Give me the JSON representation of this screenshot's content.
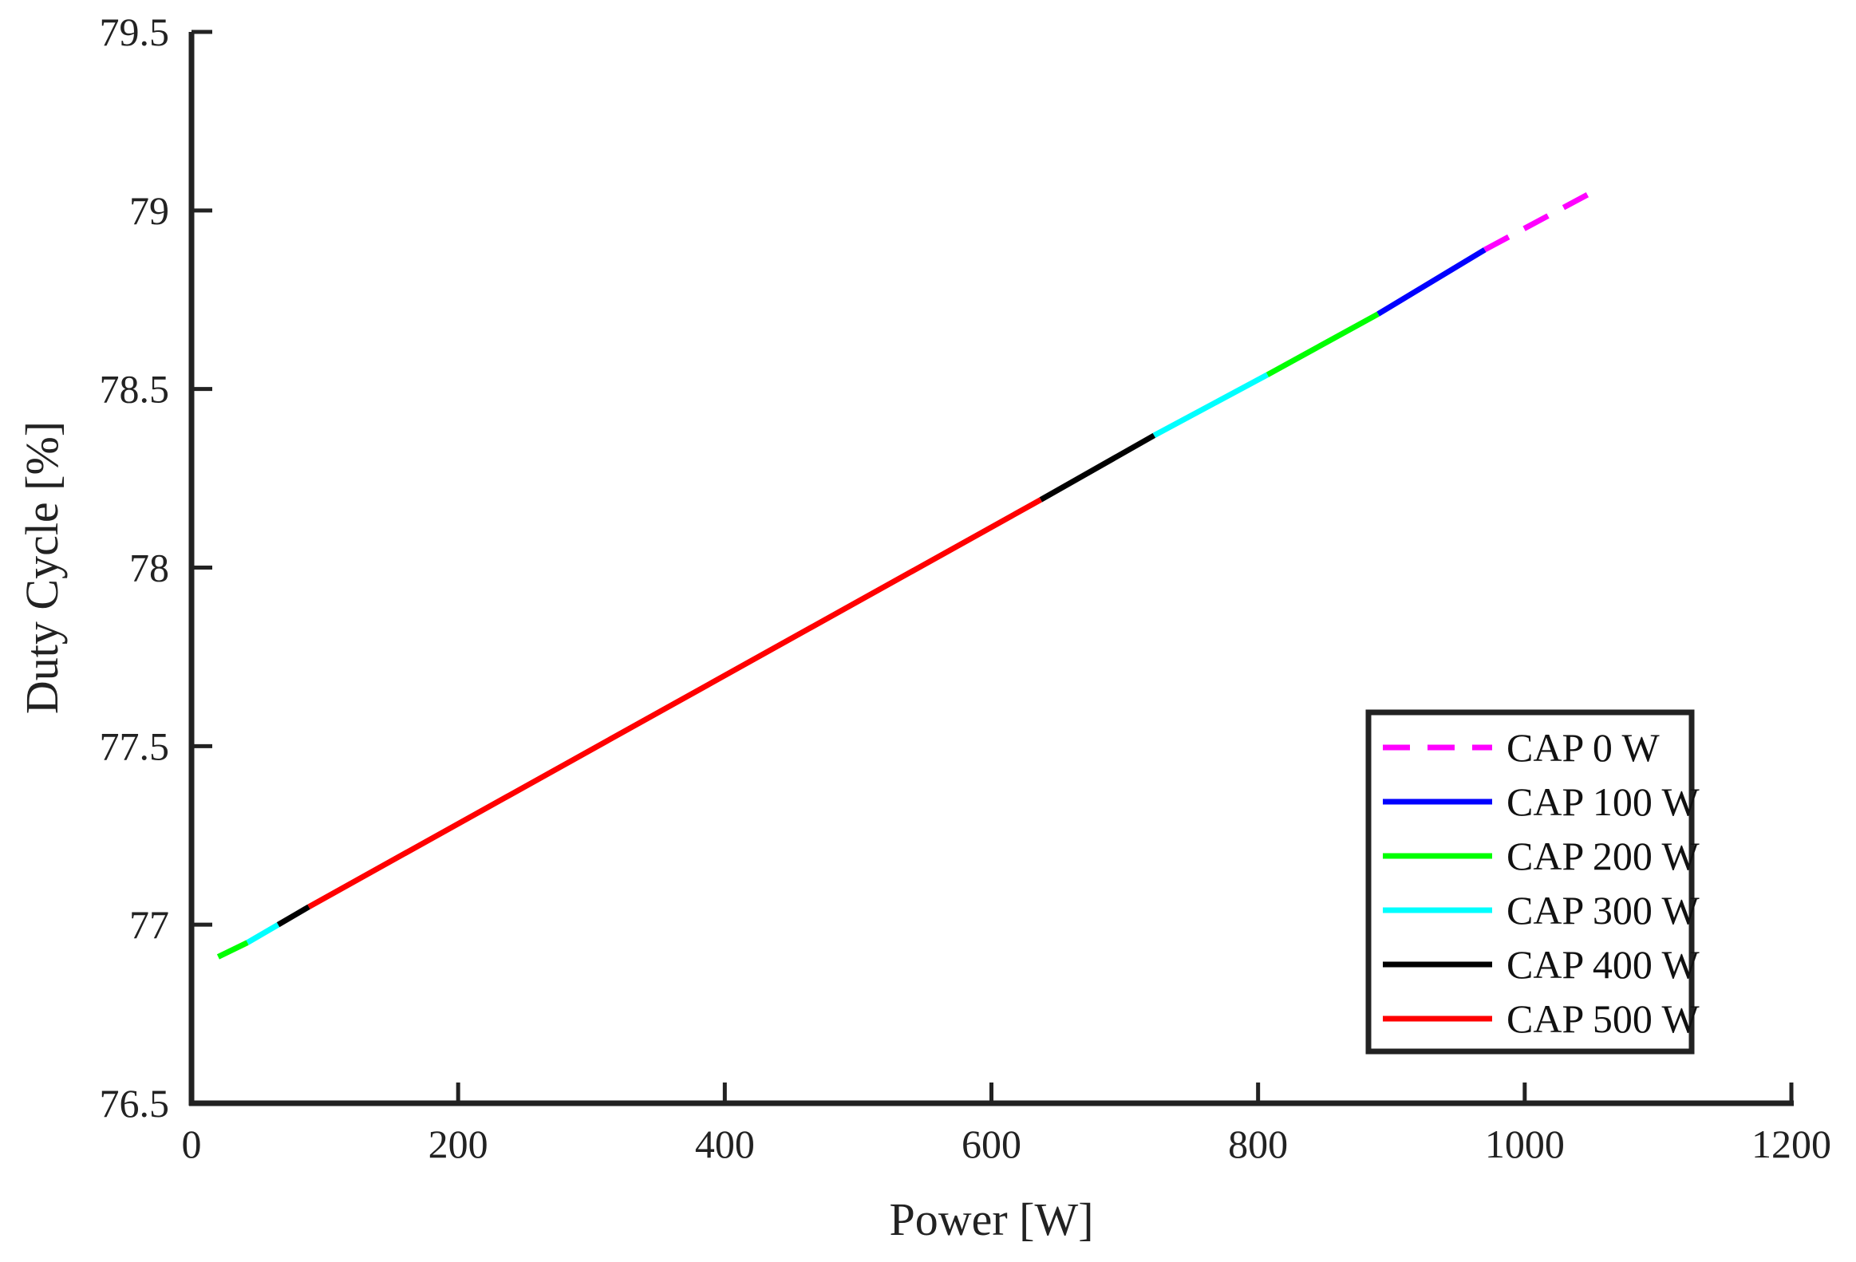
{
  "chart_data": {
    "type": "line",
    "xlabel": "Power [W]",
    "ylabel": "Duty Cycle [%]",
    "xlim": [
      0,
      1200
    ],
    "ylim": [
      76.5,
      79.5
    ],
    "xticks": [
      0,
      200,
      400,
      600,
      800,
      1000,
      1200
    ],
    "yticks": [
      76.5,
      77,
      77.5,
      78,
      78.5,
      79,
      79.5
    ],
    "xtick_labels": [
      "0",
      "200",
      "400",
      "600",
      "800",
      "1000",
      "1200"
    ],
    "ytick_labels": [
      "76.5",
      "77",
      "77.5",
      "78",
      "78.5",
      "79",
      "79.5"
    ],
    "grid": false,
    "legend_position": "bottom-right",
    "series": [
      {
        "name": "CAP 0 W",
        "color": "#ff00ff",
        "dash": "dashed",
        "x": [
          970,
          1050
        ],
        "y": [
          78.89,
          79.05
        ]
      },
      {
        "name": "CAP 100 W",
        "color": "#0000ff",
        "dash": "solid",
        "x": [
          890,
          970
        ],
        "y": [
          78.71,
          78.89
        ]
      },
      {
        "name": "CAP 200 W",
        "color": "#00ff00",
        "dash": "solid",
        "x": [
          807,
          890
        ],
        "y": [
          78.54,
          78.71
        ]
      },
      {
        "name": "CAP 300 W",
        "color": "#00ffff",
        "dash": "solid",
        "x": [
          722,
          807
        ],
        "y": [
          78.37,
          78.54
        ]
      },
      {
        "name": "CAP 400 W",
        "color": "#000000",
        "dash": "solid",
        "x": [
          637,
          722
        ],
        "y": [
          78.19,
          78.37
        ]
      },
      {
        "name": "CAP 500 W",
        "color": "#ff0000",
        "dash": "solid",
        "x": [
          88,
          637
        ],
        "y": [
          77.05,
          78.19
        ]
      }
    ],
    "extra_segments": [
      {
        "color": "#00ff00",
        "x": [
          20,
          42
        ],
        "y": [
          76.91,
          76.95
        ]
      },
      {
        "color": "#00ffff",
        "x": [
          42,
          65
        ],
        "y": [
          76.95,
          77.0
        ]
      },
      {
        "color": "#000000",
        "x": [
          65,
          88
        ],
        "y": [
          77.0,
          77.05
        ]
      }
    ]
  }
}
